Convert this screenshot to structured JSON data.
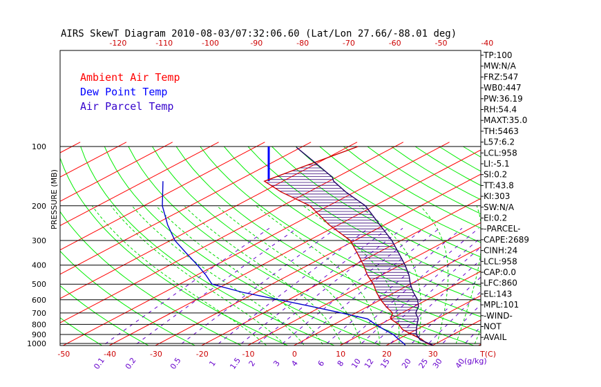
{
  "chart_data": {
    "type": "line",
    "title": "AIRS SkewT Diagram 2010-08-03/07:32:06.60 (Lat/Lon 27.66/-88.01 deg)",
    "ylabel": "PRESSURE (MB)",
    "y_scale": "log",
    "ylim": [
      1050,
      100
    ],
    "pressure_ticks": [
      "100",
      "200",
      "300",
      "400",
      "500",
      "600",
      "700",
      "800",
      "900",
      "1000"
    ],
    "top_temp_ticks": [
      "-120",
      "-110",
      "-100",
      "-90",
      "-80",
      "-70",
      "-60",
      "-50",
      "-40"
    ],
    "bottom_temp_ticks": [
      "-50",
      "-40",
      "-30",
      "-20",
      "-10",
      "0",
      "10",
      "20",
      "30"
    ],
    "bottom_temp_unit": "T(C)",
    "mixing_ratio_ticks": [
      "0.1",
      "0.2",
      "0.5",
      "1",
      "1.5",
      "2",
      "3",
      "4",
      "6",
      "8",
      "10",
      "12",
      "15",
      "20",
      "25",
      "30",
      "40"
    ],
    "mixing_ratio_unit": "(g/kg)",
    "legend": [
      {
        "label": "Ambient Air Temp",
        "color": "#ff0000"
      },
      {
        "label": "Dew Point Temp",
        "color": "#0000ff"
      },
      {
        "label": "Air Parcel Temp",
        "color": "#3300cc"
      }
    ],
    "series": [
      {
        "name": "Ambient Air Temp",
        "color": "#cc0000",
        "points": [
          [
            1020,
            30
          ],
          [
            1000,
            28
          ],
          [
            950,
            25
          ],
          [
            900,
            21
          ],
          [
            850,
            17
          ],
          [
            800,
            14
          ],
          [
            750,
            10
          ],
          [
            700,
            8
          ],
          [
            650,
            4
          ],
          [
            600,
            0
          ],
          [
            550,
            -4
          ],
          [
            500,
            -8
          ],
          [
            450,
            -13
          ],
          [
            400,
            -18
          ],
          [
            350,
            -24
          ],
          [
            300,
            -31
          ],
          [
            250,
            -42
          ],
          [
            200,
            -54
          ],
          [
            170,
            -66
          ],
          [
            150,
            -74
          ],
          [
            130,
            -72
          ],
          [
            100,
            -68
          ]
        ]
      },
      {
        "name": "Dew Point Temp",
        "color": "#0000cc",
        "points": [
          [
            1020,
            24
          ],
          [
            1000,
            23
          ],
          [
            950,
            20
          ],
          [
            900,
            17
          ],
          [
            850,
            13
          ],
          [
            800,
            9
          ],
          [
            750,
            5
          ],
          [
            700,
            -3
          ],
          [
            650,
            -12
          ],
          [
            600,
            -22
          ],
          [
            550,
            -33
          ],
          [
            500,
            -43
          ],
          [
            450,
            -48
          ],
          [
            400,
            -54
          ],
          [
            350,
            -61
          ],
          [
            300,
            -69
          ],
          [
            250,
            -77
          ],
          [
            200,
            -86
          ],
          [
            150,
            -96
          ]
        ]
      },
      {
        "name": "Air Parcel Temp",
        "color": "#220066",
        "points": [
          [
            1020,
            30
          ],
          [
            958,
            25
          ],
          [
            900,
            22
          ],
          [
            850,
            20
          ],
          [
            800,
            18
          ],
          [
            750,
            16
          ],
          [
            700,
            13
          ],
          [
            650,
            11
          ],
          [
            600,
            8
          ],
          [
            550,
            4
          ],
          [
            500,
            0
          ],
          [
            450,
            -4
          ],
          [
            400,
            -9
          ],
          [
            350,
            -15
          ],
          [
            300,
            -22
          ],
          [
            250,
            -31
          ],
          [
            200,
            -42
          ],
          [
            170,
            -52
          ],
          [
            150,
            -59
          ],
          [
            143,
            -61
          ],
          [
            120,
            -71
          ],
          [
            101,
            -81
          ]
        ]
      }
    ],
    "wind_barb_color": "#0000ff",
    "grid": true
  },
  "indices": [
    "TP:100",
    "MW:N/A",
    "FRZ:547",
    "WB0:447",
    "PW:36.19",
    "RH:54.4",
    "MAXT:35.0",
    "TH:5463",
    "L57:6.2",
    "LCL:958",
    "LI:-5.1",
    "SI:0.2",
    "TT:43.8",
    "KI:303",
    "SW:N/A",
    "EI:0.2",
    "-PARCEL-",
    "CAPE:2689",
    "CINH:24",
    "LCL:958",
    "CAP:0.0",
    "LFC:860",
    "EL:143",
    "MPL:101",
    "-WIND-",
    "NOT",
    "AVAIL"
  ],
  "colors": {
    "isotherm": "#ff0000",
    "dry_adiabat": "#00ee00",
    "moist_adiabat": "#00dd00",
    "mixing_ratio": "#6600cc",
    "isobar": "#000000"
  }
}
